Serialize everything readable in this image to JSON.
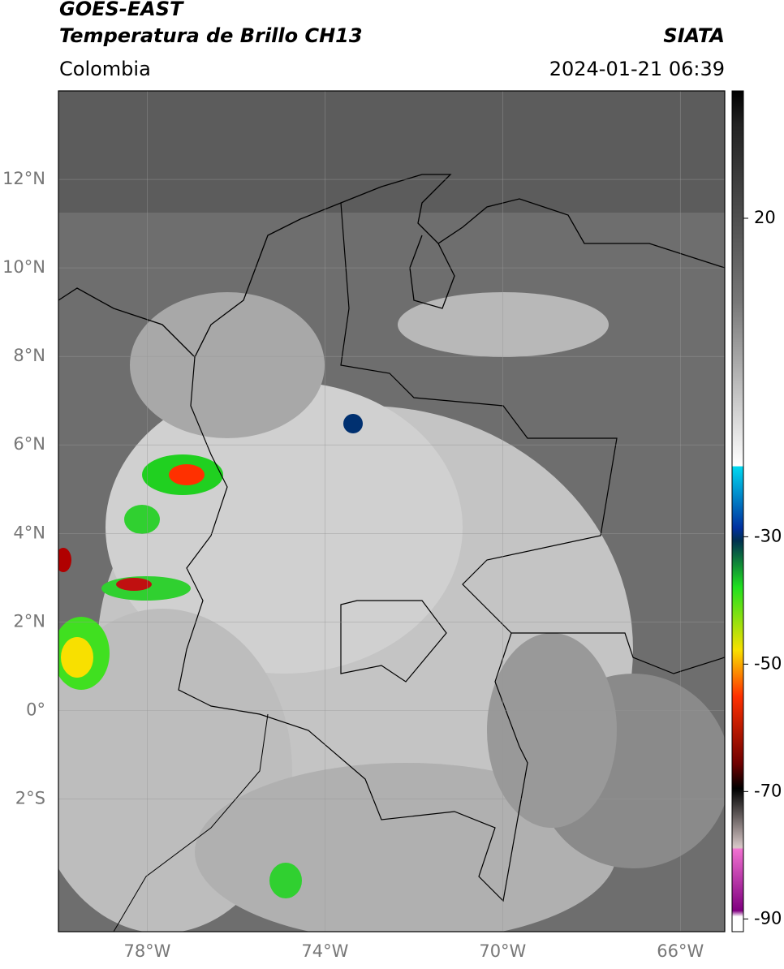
{
  "header": {
    "title": "GOES-EAST",
    "subtitle": "Temperatura de Brillo CH13",
    "region": "Colombia",
    "source": "SIATA",
    "timestamp": "2024-01-21 06:39"
  },
  "map": {
    "lonlim": [
      -80,
      -65
    ],
    "latlim": [
      -5,
      14
    ],
    "lat_ticks": [
      {
        "value": 12,
        "label": "12°N"
      },
      {
        "value": 10,
        "label": "10°N"
      },
      {
        "value": 8,
        "label": "8°N"
      },
      {
        "value": 6,
        "label": "6°N"
      },
      {
        "value": 4,
        "label": "4°N"
      },
      {
        "value": 2,
        "label": "2°N"
      },
      {
        "value": 0,
        "label": "0°"
      },
      {
        "value": -2,
        "label": "2°S"
      }
    ],
    "lon_ticks": [
      {
        "value": -78,
        "label": "78°W"
      },
      {
        "value": -74,
        "label": "74°W"
      },
      {
        "value": -70,
        "label": "70°W"
      },
      {
        "value": -66,
        "label": "66°W"
      }
    ]
  },
  "colorbar": {
    "lim": [
      -92,
      40
    ],
    "ticks": [
      20,
      -30,
      -50,
      -70,
      -90
    ]
  }
}
